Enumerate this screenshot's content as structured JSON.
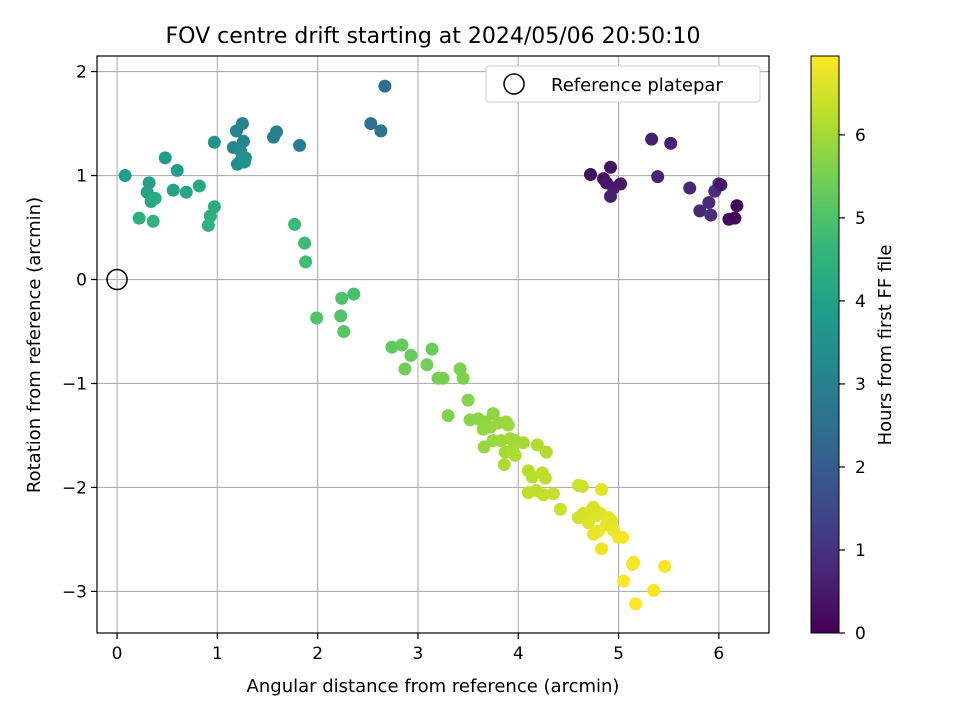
{
  "chart_data": {
    "type": "scatter",
    "title": "FOV centre drift starting at 2024/05/06 20:50:10",
    "xlabel": "Angular distance from reference (arcmin)",
    "ylabel": "Rotation from reference (arcmin)",
    "xlim": [
      -0.2,
      6.5
    ],
    "ylim": [
      -3.4,
      2.15
    ],
    "xticks": [
      0,
      1,
      2,
      3,
      4,
      5,
      6
    ],
    "yticks": [
      -3,
      -2,
      -1,
      0,
      1,
      2
    ],
    "grid": true,
    "legend": {
      "position": "top-right",
      "entries": [
        "Reference platepar"
      ]
    },
    "reference_point": {
      "x": 0,
      "y": 0
    },
    "colorbar": {
      "label": "Hours from first FF file",
      "range": [
        0,
        6.95
      ],
      "ticks": [
        0,
        1,
        2,
        3,
        4,
        5,
        6
      ],
      "colormap": "viridis"
    },
    "points": [
      [
        4.72,
        1.01,
        0.25
      ],
      [
        4.85,
        0.97,
        0.3
      ],
      [
        4.92,
        1.08,
        0.35
      ],
      [
        4.88,
        0.93,
        0.4
      ],
      [
        5.02,
        0.92,
        0.45
      ],
      [
        4.95,
        0.88,
        0.5
      ],
      [
        4.92,
        0.8,
        0.55
      ],
      [
        5.33,
        1.35,
        0.6
      ],
      [
        5.52,
        1.31,
        0.65
      ],
      [
        5.39,
        0.99,
        0.7
      ],
      [
        5.71,
        0.88,
        0.75
      ],
      [
        5.81,
        0.66,
        0.8
      ],
      [
        5.9,
        0.74,
        0.85
      ],
      [
        5.92,
        0.62,
        0.9
      ],
      [
        5.96,
        0.85,
        0.95
      ],
      [
        6.0,
        0.92,
        1.0
      ],
      [
        6.02,
        0.91,
        0.4
      ],
      [
        6.1,
        0.58,
        0.2
      ],
      [
        6.18,
        0.71,
        0.15
      ],
      [
        6.16,
        0.59,
        0.1
      ],
      [
        2.67,
        1.86,
        2.5
      ],
      [
        2.53,
        1.5,
        2.6
      ],
      [
        2.63,
        1.43,
        2.7
      ],
      [
        1.82,
        1.29,
        2.9
      ],
      [
        1.56,
        1.37,
        3.0
      ],
      [
        1.59,
        1.42,
        3.05
      ],
      [
        1.25,
        1.5,
        3.1
      ],
      [
        1.19,
        1.43,
        3.15
      ],
      [
        1.26,
        1.33,
        3.2
      ],
      [
        1.16,
        1.27,
        3.25
      ],
      [
        1.23,
        1.24,
        3.3
      ],
      [
        1.24,
        1.15,
        3.35
      ],
      [
        1.2,
        1.11,
        3.4
      ],
      [
        1.27,
        1.13,
        3.45
      ],
      [
        1.28,
        1.17,
        3.5
      ],
      [
        0.97,
        1.32,
        3.6
      ],
      [
        0.48,
        1.17,
        3.8
      ],
      [
        0.6,
        1.05,
        3.85
      ],
      [
        0.08,
        1.0,
        3.9
      ],
      [
        0.32,
        0.93,
        3.95
      ],
      [
        0.3,
        0.84,
        4.0
      ],
      [
        0.56,
        0.86,
        4.05
      ],
      [
        0.69,
        0.84,
        4.1
      ],
      [
        0.82,
        0.9,
        4.15
      ],
      [
        0.34,
        0.75,
        4.2
      ],
      [
        0.38,
        0.78,
        4.25
      ],
      [
        0.97,
        0.7,
        4.3
      ],
      [
        0.93,
        0.61,
        4.35
      ],
      [
        0.22,
        0.59,
        4.4
      ],
      [
        0.36,
        0.56,
        4.45
      ],
      [
        0.91,
        0.52,
        4.5
      ],
      [
        1.77,
        0.53,
        4.7
      ],
      [
        1.87,
        0.35,
        4.75
      ],
      [
        1.88,
        0.17,
        4.8
      ],
      [
        2.36,
        -0.14,
        4.9
      ],
      [
        2.24,
        -0.18,
        4.95
      ],
      [
        2.23,
        -0.35,
        5.0
      ],
      [
        1.99,
        -0.37,
        5.05
      ],
      [
        2.26,
        -0.5,
        5.1
      ],
      [
        2.74,
        -0.65,
        5.2
      ],
      [
        2.84,
        -0.63,
        5.25
      ],
      [
        2.93,
        -0.73,
        5.3
      ],
      [
        3.14,
        -0.67,
        5.35
      ],
      [
        2.87,
        -0.86,
        5.4
      ],
      [
        3.09,
        -0.82,
        5.45
      ],
      [
        3.2,
        -0.95,
        5.5
      ],
      [
        3.25,
        -0.95,
        5.5
      ],
      [
        3.42,
        -0.86,
        5.55
      ],
      [
        3.45,
        -0.95,
        5.6
      ],
      [
        3.5,
        -1.16,
        5.65
      ],
      [
        3.3,
        -1.31,
        5.6
      ],
      [
        3.52,
        -1.35,
        5.7
      ],
      [
        3.6,
        -1.34,
        5.7
      ],
      [
        3.67,
        -1.37,
        5.75
      ],
      [
        3.75,
        -1.29,
        5.75
      ],
      [
        3.65,
        -1.44,
        5.8
      ],
      [
        3.72,
        -1.42,
        5.8
      ],
      [
        3.8,
        -1.38,
        5.85
      ],
      [
        3.88,
        -1.37,
        5.85
      ],
      [
        3.9,
        -1.4,
        5.9
      ],
      [
        3.66,
        -1.61,
        5.85
      ],
      [
        3.75,
        -1.55,
        5.9
      ],
      [
        3.83,
        -1.55,
        5.9
      ],
      [
        3.92,
        -1.53,
        5.95
      ],
      [
        3.97,
        -1.55,
        5.95
      ],
      [
        4.05,
        -1.57,
        6.0
      ],
      [
        3.87,
        -1.66,
        6.0
      ],
      [
        3.94,
        -1.64,
        6.05
      ],
      [
        3.97,
        -1.69,
        6.05
      ],
      [
        3.86,
        -1.78,
        6.1
      ],
      [
        4.19,
        -1.59,
        6.1
      ],
      [
        4.28,
        -1.66,
        6.15
      ],
      [
        4.1,
        -1.84,
        6.2
      ],
      [
        4.14,
        -1.9,
        6.2
      ],
      [
        4.24,
        -1.86,
        6.25
      ],
      [
        4.27,
        -1.91,
        6.25
      ],
      [
        4.1,
        -2.05,
        6.3
      ],
      [
        4.18,
        -2.03,
        6.3
      ],
      [
        4.25,
        -2.07,
        6.35
      ],
      [
        4.35,
        -2.06,
        6.35
      ],
      [
        4.42,
        -2.21,
        6.4
      ],
      [
        4.6,
        -1.98,
        6.45
      ],
      [
        4.64,
        -1.99,
        6.45
      ],
      [
        4.6,
        -2.29,
        6.5
      ],
      [
        4.65,
        -2.25,
        6.5
      ],
      [
        4.72,
        -2.23,
        6.55
      ],
      [
        4.75,
        -2.19,
        6.55
      ],
      [
        4.78,
        -2.27,
        6.6
      ],
      [
        4.7,
        -2.34,
        6.6
      ],
      [
        4.82,
        -2.25,
        6.6
      ],
      [
        4.83,
        -2.02,
        6.65
      ],
      [
        4.9,
        -2.29,
        6.65
      ],
      [
        4.93,
        -2.32,
        6.7
      ],
      [
        4.88,
        -2.36,
        6.7
      ],
      [
        4.95,
        -2.41,
        6.75
      ],
      [
        4.75,
        -2.45,
        6.75
      ],
      [
        4.8,
        -2.42,
        6.75
      ],
      [
        4.83,
        -2.59,
        6.8
      ],
      [
        5.0,
        -2.48,
        6.8
      ],
      [
        5.04,
        -2.48,
        6.85
      ],
      [
        5.15,
        -2.72,
        6.85
      ],
      [
        5.14,
        -2.74,
        6.85
      ],
      [
        5.46,
        -2.76,
        6.9
      ],
      [
        5.05,
        -2.9,
        6.9
      ],
      [
        5.35,
        -2.99,
        6.9
      ],
      [
        5.17,
        -3.12,
        6.95
      ]
    ]
  }
}
